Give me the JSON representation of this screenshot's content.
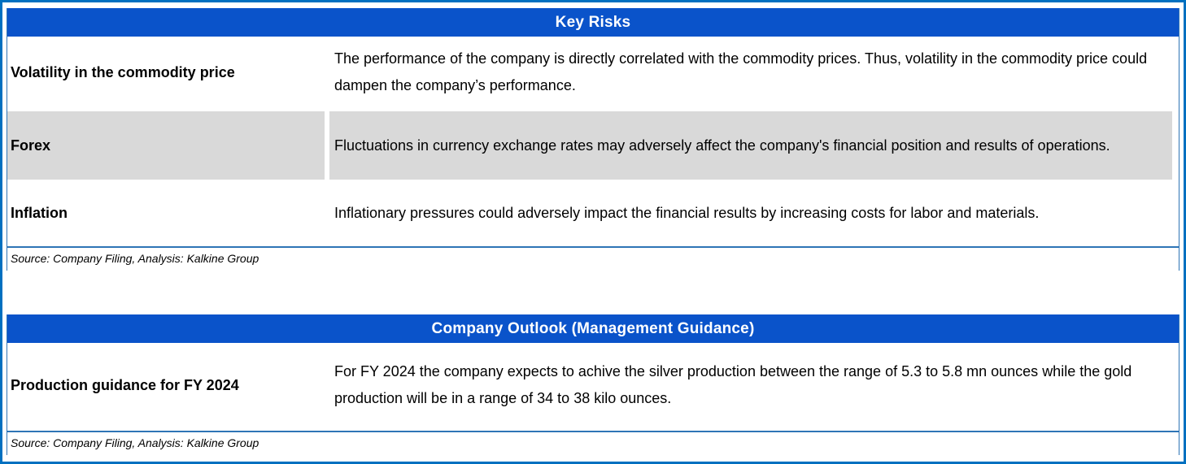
{
  "colors": {
    "outer_border": "#0070C0",
    "header_bg": "#0A53CA",
    "header_text": "#FFFFFF",
    "row_highlight_gray": "#D9D9D9",
    "divider_blue": "#2E75B6"
  },
  "key_risks": {
    "title": "Key Risks",
    "rows": [
      {
        "label": "Volatility in the commodity price",
        "desc": "The performance of the company is directly correlated with the commodity prices. Thus, volatility in the commodity price could dampen the company’s performance."
      },
      {
        "label": "Forex",
        "desc": "Fluctuations in currency exchange rates may adversely affect the company's financial position and results of operations."
      },
      {
        "label": "Inflation",
        "desc": "Inflationary pressures could adversely impact the financial results by increasing costs for labor and materials."
      }
    ],
    "source": "Source: Company Filing, Analysis: Kalkine Group"
  },
  "company_outlook": {
    "title": "Company Outlook (Management Guidance)",
    "rows": [
      {
        "label": "Production guidance for FY 2024",
        "desc": "For FY 2024 the company expects to achive the silver production between the range of 5.3 to 5.8 mn ounces while the gold production will be in a range of  34 to 38 kilo ounces."
      }
    ],
    "source": "Source: Company Filing, Analysis: Kalkine Group"
  }
}
